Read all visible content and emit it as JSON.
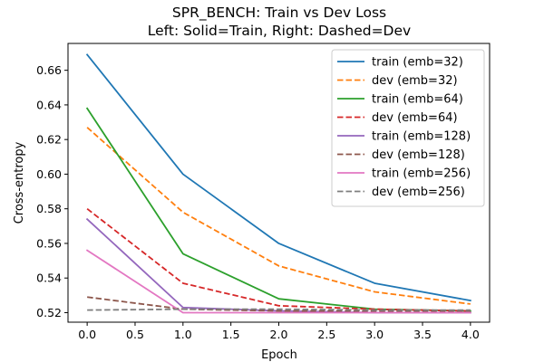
{
  "chart_data": {
    "type": "line",
    "title": "SPR_BENCH: Train vs Dev Loss",
    "subtitle": "Left: Solid=Train, Right: Dashed=Dev",
    "xlabel": "Epoch",
    "ylabel": "Cross-entropy",
    "xlim": [
      -0.2,
      4.2
    ],
    "ylim": [
      0.5145,
      0.6755
    ],
    "xticks": [
      0.0,
      0.5,
      1.0,
      1.5,
      2.0,
      2.5,
      3.0,
      3.5,
      4.0
    ],
    "xtick_labels": [
      "0.0",
      "0.5",
      "1.0",
      "1.5",
      "2.0",
      "2.5",
      "3.0",
      "3.5",
      "4.0"
    ],
    "yticks": [
      0.52,
      0.54,
      0.56,
      0.58,
      0.6,
      0.62,
      0.64,
      0.66
    ],
    "ytick_labels": [
      "0.52",
      "0.54",
      "0.56",
      "0.58",
      "0.60",
      "0.62",
      "0.64",
      "0.66"
    ],
    "grid": false,
    "legend_position": "top-right",
    "x": [
      0,
      1,
      2,
      3,
      4
    ],
    "series": [
      {
        "name": "train (emb=32)",
        "color": "#1f77b4",
        "dash": "solid",
        "values": [
          0.669,
          0.6,
          0.56,
          0.537,
          0.527
        ]
      },
      {
        "name": "dev (emb=32)",
        "color": "#ff7f0e",
        "dash": "dashed",
        "values": [
          0.627,
          0.578,
          0.547,
          0.532,
          0.525
        ]
      },
      {
        "name": "train (emb=64)",
        "color": "#2ca02c",
        "dash": "solid",
        "values": [
          0.638,
          0.554,
          0.528,
          0.522,
          0.521
        ]
      },
      {
        "name": "dev (emb=64)",
        "color": "#d62728",
        "dash": "dashed",
        "values": [
          0.58,
          0.537,
          0.524,
          0.522,
          0.521
        ]
      },
      {
        "name": "train (emb=128)",
        "color": "#9467bd",
        "dash": "solid",
        "values": [
          0.574,
          0.523,
          0.521,
          0.52,
          0.52
        ]
      },
      {
        "name": "dev (emb=128)",
        "color": "#8c564b",
        "dash": "dashed",
        "values": [
          0.529,
          0.522,
          0.521,
          0.521,
          0.521
        ]
      },
      {
        "name": "train (emb=256)",
        "color": "#e377c2",
        "dash": "solid",
        "values": [
          0.556,
          0.52,
          0.52,
          0.52,
          0.52
        ]
      },
      {
        "name": "dev (emb=256)",
        "color": "#7f7f7f",
        "dash": "dashed",
        "values": [
          0.5215,
          0.522,
          0.522,
          0.5215,
          0.5215
        ]
      }
    ]
  }
}
